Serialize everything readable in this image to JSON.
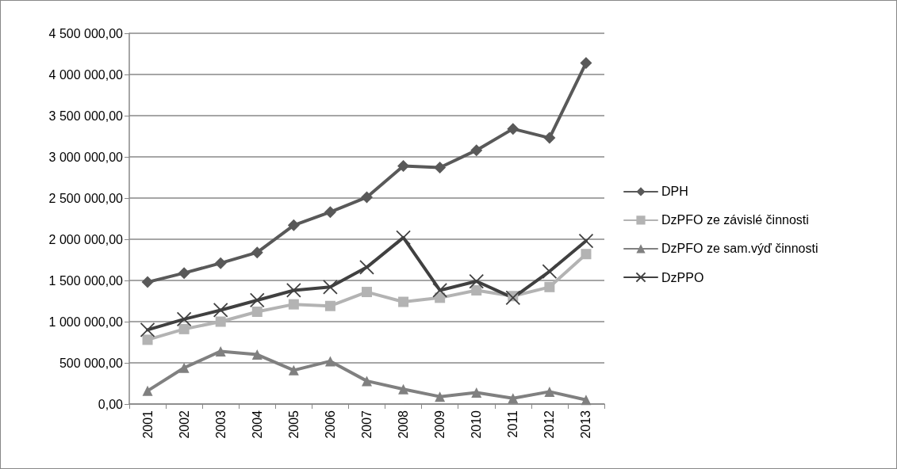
{
  "chart_data": {
    "type": "line",
    "categories": [
      "2001",
      "2002",
      "2003",
      "2004",
      "2005",
      "2006",
      "2007",
      "2008",
      "2009",
      "2010",
      "2011",
      "2012",
      "2013"
    ],
    "series": [
      {
        "name": "DPH",
        "color": "#595959",
        "marker": "diamond",
        "values": [
          1480000,
          1590000,
          1710000,
          1840000,
          2170000,
          2330000,
          2510000,
          2890000,
          2870000,
          3080000,
          3340000,
          3230000,
          4140000
        ]
      },
      {
        "name": "DzPFO ze závislé činnosti",
        "color": "#b3b3b3",
        "marker": "square",
        "values": [
          780000,
          910000,
          1000000,
          1120000,
          1210000,
          1190000,
          1360000,
          1240000,
          1290000,
          1380000,
          1310000,
          1420000,
          1820000
        ]
      },
      {
        "name": "DzPFO ze sam.výď činnosti",
        "color": "#808080",
        "marker": "triangle",
        "values": [
          160000,
          440000,
          640000,
          600000,
          410000,
          520000,
          280000,
          180000,
          90000,
          140000,
          70000,
          150000,
          50000
        ]
      },
      {
        "name": "DzPPO",
        "color": "#404040",
        "marker": "cross",
        "values": [
          900000,
          1030000,
          1140000,
          1260000,
          1380000,
          1420000,
          1660000,
          2020000,
          1380000,
          1490000,
          1290000,
          1610000,
          1980000
        ]
      }
    ],
    "ylim": [
      0,
      4500000
    ],
    "yticks": [
      {
        "value": 0,
        "label": "0,00"
      },
      {
        "value": 500000,
        "label": "500 000,00"
      },
      {
        "value": 1000000,
        "label": "1 000 000,00"
      },
      {
        "value": 1500000,
        "label": "1 500 000,00"
      },
      {
        "value": 2000000,
        "label": "2 000 000,00"
      },
      {
        "value": 2500000,
        "label": "2 500 000,00"
      },
      {
        "value": 3000000,
        "label": "3 000 000,00"
      },
      {
        "value": 3500000,
        "label": "3 500 000,00"
      },
      {
        "value": 4000000,
        "label": "4 000 000,00"
      },
      {
        "value": 4500000,
        "label": "4 500 000,00"
      }
    ],
    "grid": "y",
    "legend": "right",
    "line_style": "solid"
  }
}
